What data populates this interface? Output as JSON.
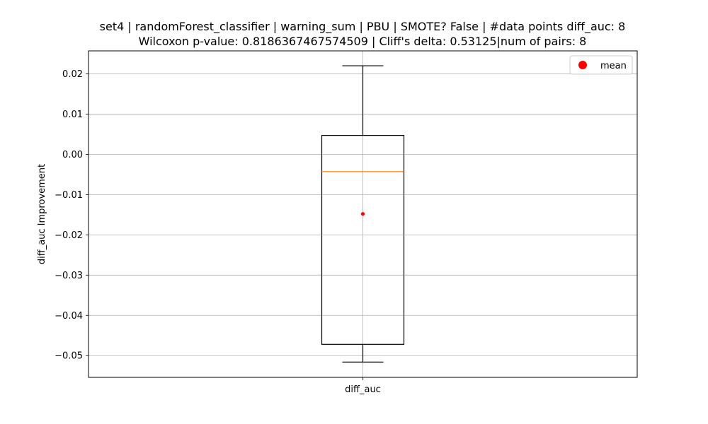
{
  "chart_data": {
    "type": "box",
    "title": "set4 | randomForest_classifier | warning_sum | PBU | SMOTE? False | #data points diff_auc: 8",
    "subtitle": "Wilcoxon p-value: 0.8186367467574509 | Cliff's delta: 0.53125|num of pairs: 8",
    "xlabel": "",
    "ylabel": "diff_auc Improvement",
    "ylim": [
      -0.0554,
      0.0257
    ],
    "yticks": [
      0.02,
      0.01,
      0.0,
      -0.01,
      -0.02,
      -0.03,
      -0.04,
      -0.05
    ],
    "ytick_labels": [
      "0.02",
      "0.01",
      "0.00",
      "−0.01",
      "−0.02",
      "−0.03",
      "−0.04",
      "−0.05"
    ],
    "categories": [
      "diff_auc"
    ],
    "boxes": [
      {
        "name": "diff_auc",
        "whisker_low": -0.0516,
        "q1": -0.0472,
        "median": -0.0043,
        "q3": 0.0047,
        "whisker_high": 0.022,
        "mean": -0.0148
      }
    ],
    "legend": {
      "entries": [
        "mean"
      ],
      "placement": "top-right"
    },
    "grid": true,
    "colors": {
      "box": "#000000",
      "median": "#ff7f0e",
      "mean": "#ff0000",
      "grid": "#b0b0b0"
    }
  }
}
